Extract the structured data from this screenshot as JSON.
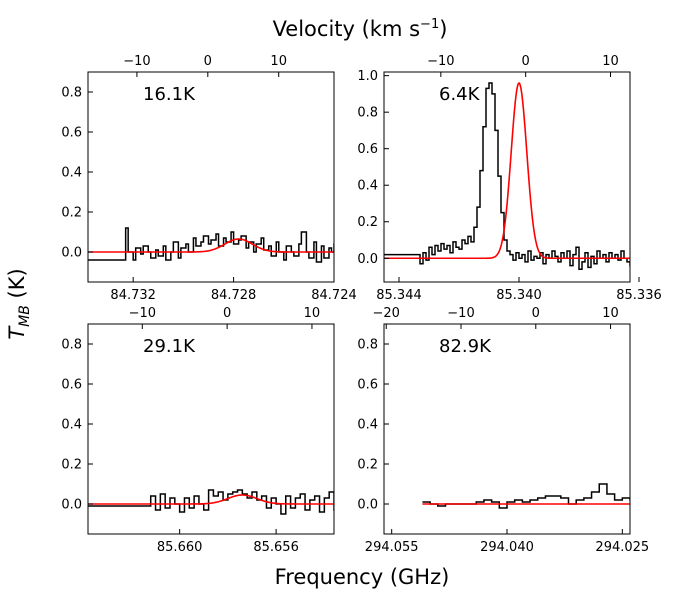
{
  "figure": {
    "top_title": "Velocity (km s",
    "top_title_sup": "−1",
    "top_title_end": ")",
    "xlabel": "Frequency (GHz)",
    "ylabel_main": "T",
    "ylabel_sub": "MB",
    "ylabel_unit": " (K)"
  },
  "chart_data": [
    {
      "type": "line",
      "panel": "top-left",
      "label": "16.1K",
      "xlim_freq": [
        84.7338,
        84.724
      ],
      "xticks_freq": [
        84.732,
        84.728,
        84.724
      ],
      "xtick_labels_freq": [
        "84.732",
        "84.728",
        "84.724"
      ],
      "vlim": [
        -16.9,
        17.8
      ],
      "xticks_vel": [
        -10,
        0,
        10
      ],
      "xtick_labels_vel": [
        "−10",
        "0",
        "10"
      ],
      "ylim": [
        -0.15,
        0.9
      ],
      "yticks": [
        0.0,
        0.2,
        0.4,
        0.6,
        0.8
      ],
      "ytick_labels": [
        "0.0",
        "0.2",
        "0.4",
        "0.6",
        "0.8"
      ],
      "gauss": {
        "center": 84.7278,
        "amp": 0.065,
        "sigma": 0.00055
      },
      "series": [
        {
          "name": "observed",
          "color": "#000000",
          "style": "step",
          "x": [
            84.7338,
            84.7323,
            84.7322,
            84.732,
            84.7319,
            84.7317,
            84.7316,
            84.7314,
            84.7313,
            84.7311,
            84.731,
            84.7308,
            84.7307,
            84.7305,
            84.7304,
            84.7302,
            84.7301,
            84.7299,
            84.7298,
            84.7296,
            84.7295,
            84.7293,
            84.7292,
            84.729,
            84.7289,
            84.7287,
            84.7286,
            84.7284,
            84.7283,
            84.7281,
            84.728,
            84.7278,
            84.7277,
            84.7275,
            84.7274,
            84.7272,
            84.7271,
            84.7269,
            84.7268,
            84.7266,
            84.7265,
            84.7263,
            84.7262,
            84.726,
            84.7259,
            84.7257,
            84.7256,
            84.7254,
            84.7253,
            84.7251,
            84.725,
            84.7248,
            84.7247,
            84.7245,
            84.7244,
            84.7242,
            84.7241,
            84.724
          ],
          "y": [
            -0.04,
            0.12,
            0.0,
            -0.04,
            0.02,
            -0.01,
            0.03,
            0.0,
            -0.03,
            0.01,
            -0.02,
            0.03,
            -0.04,
            0.0,
            0.05,
            -0.03,
            0.02,
            0.04,
            0.0,
            0.07,
            0.03,
            0.05,
            0.08,
            0.04,
            0.06,
            0.09,
            0.03,
            0.07,
            0.05,
            0.1,
            0.04,
            0.06,
            0.08,
            0.02,
            0.05,
            0.0,
            0.04,
            0.07,
            0.01,
            0.03,
            -0.02,
            0.05,
            0.0,
            -0.04,
            0.03,
            0.0,
            -0.02,
            0.04,
            0.1,
            0.0,
            -0.03,
            0.05,
            -0.05,
            0.03,
            -0.03,
            0.02,
            0.0,
            0.04
          ]
        },
        {
          "name": "gaussian fit",
          "color": "#ff0000",
          "style": "line"
        }
      ]
    },
    {
      "type": "line",
      "panel": "top-right",
      "label": "6.4K",
      "xlim_freq": [
        85.3445,
        85.3363
      ],
      "xticks_freq": [
        85.344,
        85.34,
        85.336
      ],
      "xtick_labels_freq": [
        "85.344",
        "85.340",
        "85.336"
      ],
      "vlim": [
        -16.7,
        12.3
      ],
      "xticks_vel": [
        -10,
        0,
        10
      ],
      "xtick_labels_vel": [
        "−10",
        "0",
        "10"
      ],
      "ylim": [
        -0.13,
        1.02
      ],
      "yticks": [
        0.0,
        0.2,
        0.4,
        0.6,
        0.8,
        1.0
      ],
      "ytick_labels": [
        "0.0",
        "0.2",
        "0.4",
        "0.6",
        "0.8",
        "1.0"
      ],
      "gauss": {
        "center": 85.34,
        "amp": 0.96,
        "sigma": 0.00026
      },
      "series": [
        {
          "name": "observed",
          "color": "#000000",
          "style": "step",
          "x": [
            85.3445,
            85.3433,
            85.3432,
            85.3431,
            85.343,
            85.3429,
            85.3428,
            85.3427,
            85.3426,
            85.3425,
            85.3424,
            85.3423,
            85.3422,
            85.3421,
            85.342,
            85.3419,
            85.3418,
            85.3417,
            85.3416,
            85.3415,
            85.3414,
            85.3413,
            85.3412,
            85.3411,
            85.341,
            85.3409,
            85.3408,
            85.3407,
            85.3406,
            85.3405,
            85.3404,
            85.3403,
            85.3402,
            85.3401,
            85.34,
            85.3399,
            85.3398,
            85.3397,
            85.3396,
            85.3395,
            85.3394,
            85.3393,
            85.3392,
            85.3391,
            85.339,
            85.3389,
            85.3388,
            85.3387,
            85.3386,
            85.3385,
            85.3384,
            85.3383,
            85.3382,
            85.3381,
            85.338,
            85.3379,
            85.3378,
            85.3377,
            85.3376,
            85.3375,
            85.3374,
            85.3373,
            85.3372,
            85.3371,
            85.337,
            85.3369,
            85.3368,
            85.3367,
            85.3366,
            85.3365,
            85.3364,
            85.3363
          ],
          "y": [
            0.02,
            -0.03,
            0.03,
            -0.01,
            0.06,
            0.02,
            0.07,
            0.04,
            0.08,
            0.05,
            0.07,
            0.03,
            0.09,
            0.06,
            0.05,
            0.1,
            0.08,
            0.12,
            0.09,
            0.17,
            0.28,
            0.48,
            0.72,
            0.93,
            0.96,
            0.9,
            0.7,
            0.45,
            0.25,
            0.1,
            0.04,
            0.02,
            -0.01,
            0.03,
            0.0,
            0.02,
            -0.02,
            0.04,
            -0.01,
            0.01,
            0.0,
            0.03,
            -0.03,
            0.02,
            0.0,
            0.04,
            0.01,
            -0.02,
            0.03,
            0.0,
            0.04,
            -0.04,
            0.02,
            0.06,
            -0.06,
            -0.02,
            0.03,
            -0.05,
            0.01,
            -0.03,
            0.04,
            0.0,
            0.02,
            -0.02,
            0.03,
            0.0,
            0.02,
            -0.01,
            0.04,
            0.0,
            -0.02,
            -0.04
          ]
        },
        {
          "name": "gaussian fit",
          "color": "#ff0000",
          "style": "line"
        }
      ]
    },
    {
      "type": "line",
      "panel": "bottom-left",
      "label": "29.1K",
      "xlim_freq": [
        85.6638,
        85.6536
      ],
      "xticks_freq": [
        85.66,
        85.656
      ],
      "xtick_labels_freq": [
        "85.660",
        "85.656"
      ],
      "vlim": [
        -16.4,
        12.6
      ],
      "xticks_vel": [
        -10,
        0,
        10
      ],
      "xtick_labels_vel": [
        "−10",
        "0",
        "10"
      ],
      "ylim": [
        -0.15,
        0.9
      ],
      "yticks": [
        0.0,
        0.2,
        0.4,
        0.6,
        0.8
      ],
      "ytick_labels": [
        "0.0",
        "0.2",
        "0.4",
        "0.6",
        "0.8"
      ],
      "gauss": {
        "center": 85.6574,
        "amp": 0.045,
        "sigma": 0.0006
      },
      "series": [
        {
          "name": "observed",
          "color": "#000000",
          "style": "step",
          "x": [
            85.6638,
            85.6612,
            85.661,
            85.6608,
            85.6606,
            85.6604,
            85.6602,
            85.66,
            85.6598,
            85.6596,
            85.6594,
            85.6592,
            85.659,
            85.6588,
            85.6586,
            85.6584,
            85.6582,
            85.658,
            85.6578,
            85.6576,
            85.6574,
            85.6572,
            85.657,
            85.6568,
            85.6566,
            85.6564,
            85.6562,
            85.656,
            85.6558,
            85.6556,
            85.6554,
            85.6552,
            85.655,
            85.6548,
            85.6546,
            85.6544,
            85.6542,
            85.654,
            85.6538,
            85.6536
          ],
          "y": [
            -0.01,
            0.04,
            -0.03,
            0.05,
            -0.02,
            0.03,
            0.0,
            -0.04,
            0.03,
            -0.02,
            0.04,
            0.0,
            -0.03,
            0.07,
            0.04,
            0.06,
            0.02,
            0.05,
            0.06,
            0.07,
            0.05,
            0.03,
            0.06,
            0.02,
            0.04,
            -0.02,
            0.03,
            0.0,
            -0.05,
            0.04,
            -0.02,
            0.03,
            0.05,
            -0.03,
            0.02,
            0.04,
            -0.04,
            0.03,
            0.06,
            -0.03
          ]
        },
        {
          "name": "gaussian fit",
          "color": "#ff0000",
          "style": "line"
        }
      ]
    },
    {
      "type": "line",
      "panel": "bottom-right",
      "label": "82.9K",
      "xlim_freq": [
        294.056,
        294.024
      ],
      "xticks_freq": [
        294.055,
        294.04,
        294.025
      ],
      "xtick_labels_freq": [
        "294.055",
        "294.040",
        "294.025"
      ],
      "vlim": [
        -20.3,
        12.6
      ],
      "xticks_vel": [
        -20,
        -10,
        0,
        10
      ],
      "xtick_labels_vel": [
        "−20",
        "−10",
        "0",
        "10"
      ],
      "ylim": [
        -0.15,
        0.9
      ],
      "yticks": [
        0.0,
        0.2,
        0.4,
        0.6,
        0.8
      ],
      "ytick_labels": [
        "0.0",
        "0.2",
        "0.4",
        "0.6",
        "0.8"
      ],
      "fit_range": [
        294.051,
        294.024
      ],
      "gauss": {
        "center": 294.04,
        "amp": 0.0,
        "sigma": 0.001
      },
      "series": [
        {
          "name": "observed",
          "color": "#000000",
          "style": "step",
          "x": [
            294.051,
            294.05,
            294.049,
            294.048,
            294.047,
            294.046,
            294.045,
            294.044,
            294.043,
            294.042,
            294.041,
            294.04,
            294.039,
            294.038,
            294.037,
            294.036,
            294.035,
            294.034,
            294.033,
            294.032,
            294.031,
            294.03,
            294.029,
            294.028,
            294.027,
            294.026,
            294.025,
            294.024
          ],
          "y": [
            0.01,
            0.0,
            -0.01,
            0.0,
            0.0,
            0.0,
            0.0,
            0.01,
            0.02,
            0.01,
            -0.02,
            0.01,
            0.02,
            0.01,
            0.02,
            0.03,
            0.04,
            0.04,
            0.03,
            0.0,
            0.02,
            0.03,
            0.06,
            0.1,
            0.05,
            0.02,
            0.03,
            0.02
          ]
        },
        {
          "name": "gaussian fit",
          "color": "#ff0000",
          "style": "line"
        }
      ]
    }
  ]
}
